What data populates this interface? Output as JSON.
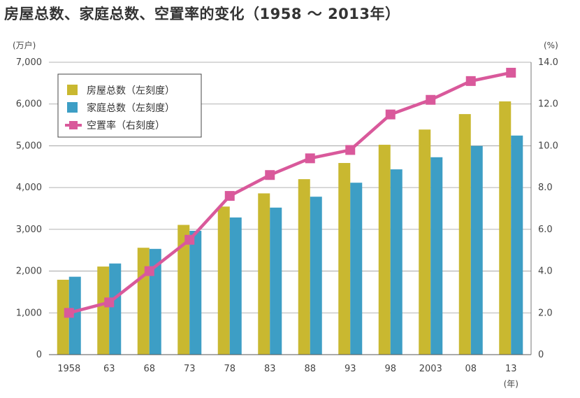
{
  "title": "房屋总数、家庭总数、空置率的变化（1958 ～ 2013年）",
  "colors": {
    "houses": "#c9b830",
    "households": "#3d9ec5",
    "vacancy": "#d9599b"
  },
  "chart_data": {
    "type": "bar",
    "title": "房屋总数、家庭总数、空置率的变化（1958 ～ 2013年）",
    "categories": [
      "1958",
      "63",
      "68",
      "73",
      "78",
      "83",
      "88",
      "93",
      "98",
      "2003",
      "08",
      "13"
    ],
    "x_unit": "(年)",
    "y_left_unit": "(万户)",
    "y_right_unit": "(%)",
    "y_left_range": [
      0,
      7000
    ],
    "y_right_range": [
      0,
      14
    ],
    "y_left_ticks": [
      "0",
      "1,000",
      "2,000",
      "3,000",
      "4,000",
      "5,000",
      "6,000",
      "7,000"
    ],
    "y_right_ticks": [
      "0",
      "2.0",
      "4.0",
      "6.0",
      "8.0",
      "10.0",
      "12.0",
      "14.0"
    ],
    "grid": true,
    "legend_position": "top-left",
    "series": [
      {
        "name": "房屋总数（左刻度）",
        "type": "bar",
        "axis": "left",
        "values": [
          1793,
          2109,
          2559,
          3106,
          3545,
          3861,
          4201,
          4588,
          5025,
          5389,
          5759,
          6063
        ]
      },
      {
        "name": "家庭总数（左刻度）",
        "type": "bar",
        "axis": "left",
        "values": [
          1865,
          2182,
          2532,
          2965,
          3284,
          3520,
          3781,
          4116,
          4436,
          4726,
          4997,
          5245
        ]
      },
      {
        "name": "空置率（右刻度）",
        "type": "line",
        "axis": "right",
        "values": [
          2.0,
          2.5,
          4.0,
          5.5,
          7.6,
          8.6,
          9.4,
          9.8,
          11.5,
          12.2,
          13.1,
          13.5
        ]
      }
    ]
  }
}
